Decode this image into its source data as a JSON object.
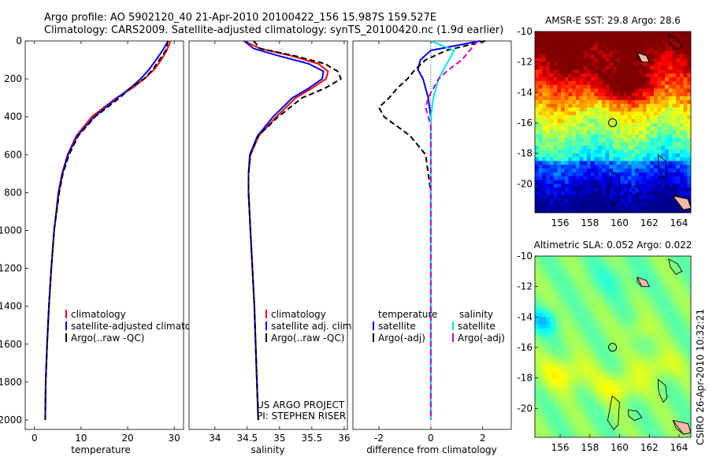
{
  "header": {
    "line1": "Argo profile: AO 5902120_40 21-Apr-2010 20100422_156 15.987S 159.527E",
    "line2": "Climatology: CARS2009. Satellite-adjusted climatology: synTS_20100420.nc (1.9d earlier)"
  },
  "side_label": "CSIRO 26-Apr-2010 10:32:21",
  "colors": {
    "clim": "#ff0000",
    "sat": "#0000ff",
    "argo": "#000000",
    "sat_sal": "#00e5e5",
    "argo_sal": "#cc00cc"
  },
  "icons": {
    "site": "circle-marker-icon"
  },
  "chart_data": [
    {
      "type": "line",
      "id": "temperature",
      "xlabel": "temperature",
      "ylabel": "",
      "xlim": [
        -2,
        32
      ],
      "ylim": [
        2050,
        0
      ],
      "xticks": [
        "0",
        "10",
        "20",
        "30"
      ],
      "yticks": [
        "0",
        "200",
        "400",
        "600",
        "800",
        "1000",
        "1200",
        "1400",
        "1600",
        "1800",
        "2000"
      ],
      "y": [
        0,
        50,
        100,
        150,
        200,
        250,
        300,
        400,
        500,
        600,
        700,
        800,
        1000,
        1200,
        1400,
        1600,
        1800,
        2000
      ],
      "series": [
        {
          "name": "climatology",
          "values": [
            29.2,
            28.4,
            27.2,
            25.7,
            23.6,
            20.9,
            17.6,
            12.3,
            9.0,
            7.1,
            5.9,
            5.1,
            4.2,
            3.6,
            3.1,
            2.7,
            2.4,
            2.3
          ]
        },
        {
          "name": "satellite-adjusted climatology",
          "values": [
            28.7,
            27.5,
            26.1,
            24.6,
            22.8,
            20.5,
            17.8,
            12.8,
            9.2,
            7.2,
            6.0,
            5.2,
            4.2,
            3.6,
            3.1,
            2.7,
            2.4,
            2.3
          ]
        },
        {
          "name": "Argo(..raw -QC)",
          "values": [
            28.6,
            28.2,
            26.8,
            25.4,
            23.5,
            20.5,
            18.3,
            13.0,
            9.4,
            7.4,
            6.1,
            5.3,
            4.2,
            3.6,
            3.1,
            2.7,
            2.4,
            2.3
          ]
        }
      ],
      "legend": [
        "climatology",
        "satellite-adjusted climatology",
        "Argo(..raw -QC)"
      ]
    },
    {
      "type": "line",
      "id": "salinity",
      "xlabel": "salinity",
      "ylabel": "",
      "xlim": [
        33.6,
        36.05
      ],
      "ylim": [
        2050,
        0
      ],
      "xticks": [
        "34",
        "34.5",
        "35",
        "35.5",
        "36"
      ],
      "yticks": [],
      "y": [
        0,
        40,
        80,
        120,
        160,
        200,
        250,
        300,
        400,
        500,
        600,
        700,
        800,
        1000,
        1200,
        1400,
        1600,
        1800,
        2000
      ],
      "series": [
        {
          "name": "climatology",
          "values": [
            34.45,
            34.7,
            35.2,
            35.6,
            35.75,
            35.72,
            35.5,
            35.25,
            34.95,
            34.68,
            34.55,
            34.52,
            34.52,
            34.55,
            34.58,
            34.61,
            34.63,
            34.65,
            34.67
          ]
        },
        {
          "name": "satellite adj. clim.",
          "values": [
            34.45,
            34.6,
            35.0,
            35.45,
            35.68,
            35.66,
            35.45,
            35.2,
            34.9,
            34.66,
            34.54,
            34.52,
            34.52,
            34.55,
            34.58,
            34.61,
            34.63,
            34.65,
            34.67
          ]
        },
        {
          "name": "Argo(..raw -QC)",
          "values": [
            34.6,
            34.7,
            35.25,
            35.7,
            35.9,
            35.95,
            35.7,
            35.35,
            34.98,
            34.67,
            34.55,
            34.52,
            34.52,
            34.55,
            34.58,
            34.61,
            34.63,
            34.65,
            34.67
          ]
        }
      ],
      "legend": [
        "climatology",
        "satellite adj. clim.",
        "Argo(..raw -QC)"
      ],
      "annotation": [
        "US ARGO PROJECT",
        "PI: STEPHEN RISER"
      ]
    },
    {
      "type": "line",
      "id": "difference",
      "xlabel": "difference from climatology",
      "ylabel": "",
      "xlim": [
        -3,
        3.1
      ],
      "ylim": [
        2050,
        0
      ],
      "xticks": [
        "-2",
        "0",
        "2"
      ],
      "yticks": [],
      "y": [
        0,
        50,
        100,
        150,
        200,
        250,
        300,
        350,
        400,
        450,
        500,
        600,
        700,
        800,
        1000,
        1200,
        1400,
        1600,
        1800,
        2000
      ],
      "series": [
        {
          "name": "temperature satellite",
          "values": [
            1.9,
            0.0,
            -0.4,
            -0.5,
            -0.3,
            -0.2,
            -0.1,
            -0.05,
            0.0,
            0.0,
            0.0,
            0.0,
            0.0,
            0.0,
            0.0,
            0.0,
            0.0,
            0.0,
            0.0,
            0.0
          ]
        },
        {
          "name": "temperature Argo(-adj)",
          "values": [
            2.1,
            0.6,
            -0.2,
            -0.6,
            -0.9,
            -1.3,
            -1.6,
            -2.0,
            -1.8,
            -1.3,
            -0.8,
            -0.2,
            -0.1,
            0.0,
            0.0,
            0.0,
            0.0,
            0.0,
            0.0,
            0.0
          ]
        },
        {
          "name": "salinity satellite",
          "values": [
            0.0,
            0.9,
            0.7,
            0.5,
            0.3,
            0.2,
            0.1,
            0.05,
            0.0,
            0.0,
            0.0,
            0.0,
            0.0,
            0.0,
            0.0,
            0.0,
            0.0,
            0.0,
            0.0,
            0.0
          ]
        },
        {
          "name": "salinity Argo(-adj)",
          "values": [
            1.8,
            1.5,
            1.2,
            0.7,
            0.3,
            0.1,
            -0.1,
            -0.2,
            -0.1,
            0.0,
            0.0,
            0.0,
            0.0,
            0.0,
            0.0,
            0.0,
            0.0,
            0.0,
            0.0,
            0.0
          ]
        }
      ],
      "legend_headers": [
        "temperature",
        "salinity"
      ],
      "legend": [
        "satellite",
        "Argo(-adj)",
        "satellite",
        "Argo(-adj)"
      ]
    },
    {
      "type": "heatmap",
      "id": "sst",
      "title": "AMSR-E SST: 29.8 Argo: 28.6",
      "xlim": [
        154.3,
        164.8
      ],
      "ylim": [
        -21.9,
        -10
      ],
      "xticks": [
        "156",
        "158",
        "160",
        "162",
        "164"
      ],
      "yticks": [
        "-10",
        "-12",
        "-14",
        "-16",
        "-18",
        "-20"
      ],
      "marker": [
        159.527,
        -15.987
      ]
    },
    {
      "type": "heatmap",
      "id": "sla",
      "title": "Altimetric SLA: 0.052 Argo: 0.022",
      "xlim": [
        154.3,
        164.8
      ],
      "ylim": [
        -21.9,
        -10
      ],
      "xticks": [
        "156",
        "158",
        "160",
        "162",
        "164"
      ],
      "yticks": [
        "-10",
        "-12",
        "-14",
        "-16",
        "-18",
        "-20"
      ],
      "marker": [
        159.527,
        -15.987
      ]
    }
  ]
}
